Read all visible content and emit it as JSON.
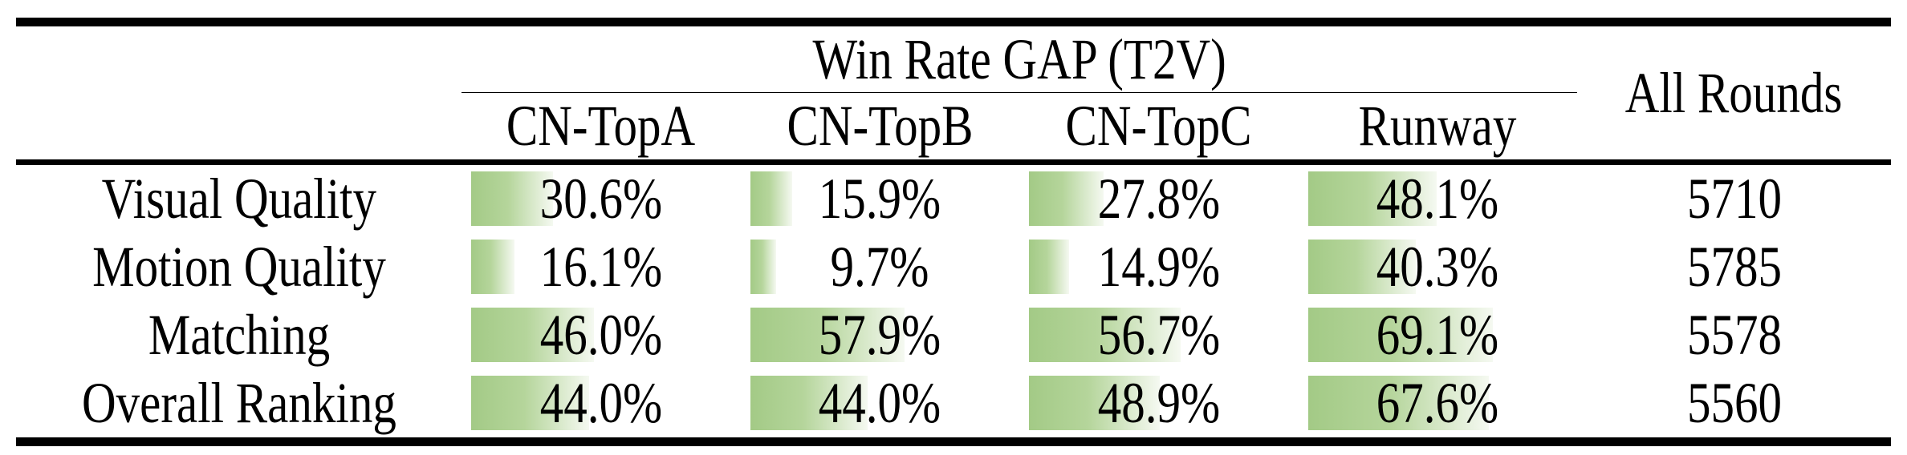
{
  "table": {
    "title": "Win Rate GAP (T2V)",
    "all_rounds_header": "All Rounds",
    "columns": [
      "CN-TopA",
      "CN-TopB",
      "CN-TopC",
      "Runway"
    ],
    "rows": [
      {
        "label": "Visual Quality",
        "cells": [
          {
            "pct": 30.6,
            "text": "30.6%"
          },
          {
            "pct": 15.9,
            "text": "15.9%"
          },
          {
            "pct": 27.8,
            "text": "27.8%"
          },
          {
            "pct": 48.1,
            "text": "48.1%"
          }
        ],
        "rounds": "5710"
      },
      {
        "label": "Motion Quality",
        "cells": [
          {
            "pct": 16.1,
            "text": "16.1%"
          },
          {
            "pct": 9.7,
            "text": "9.7%"
          },
          {
            "pct": 14.9,
            "text": "14.9%"
          },
          {
            "pct": 40.3,
            "text": "40.3%"
          }
        ],
        "rounds": "5785"
      },
      {
        "label": "Matching",
        "cells": [
          {
            "pct": 46.0,
            "text": "46.0%"
          },
          {
            "pct": 57.9,
            "text": "57.9%"
          },
          {
            "pct": 56.7,
            "text": "56.7%"
          },
          {
            "pct": 69.1,
            "text": "69.1%"
          }
        ],
        "rounds": "5578"
      },
      {
        "label": "Overall Ranking",
        "cells": [
          {
            "pct": 44.0,
            "text": "44.0%"
          },
          {
            "pct": 44.0,
            "text": "44.0%"
          },
          {
            "pct": 48.9,
            "text": "48.9%"
          },
          {
            "pct": 67.6,
            "text": "67.6%"
          }
        ],
        "rounds": "5560"
      }
    ]
  },
  "colors": {
    "bar_green": "#a3ca86",
    "bar_green_mid": "#b5d59b",
    "bar_fade": "#f5f9f1",
    "rule": "#000000",
    "text": "#000000",
    "background": "#ffffff"
  },
  "chart_data": {
    "type": "table",
    "title": "Win Rate GAP (T2V)",
    "columns": [
      "",
      "CN-TopA",
      "CN-TopB",
      "CN-TopC",
      "Runway",
      "All Rounds"
    ],
    "rows": [
      [
        "Visual Quality",
        30.6,
        15.9,
        27.8,
        48.1,
        5710
      ],
      [
        "Motion Quality",
        16.1,
        9.7,
        14.9,
        40.3,
        5785
      ],
      [
        "Matching",
        46.0,
        57.9,
        56.7,
        69.1,
        5578
      ],
      [
        "Overall Ranking",
        44.0,
        44.0,
        48.9,
        67.6,
        5560
      ]
    ],
    "notes": "Win-rate percentage cells carry green gradient data bars whose width is proportional to the value"
  }
}
